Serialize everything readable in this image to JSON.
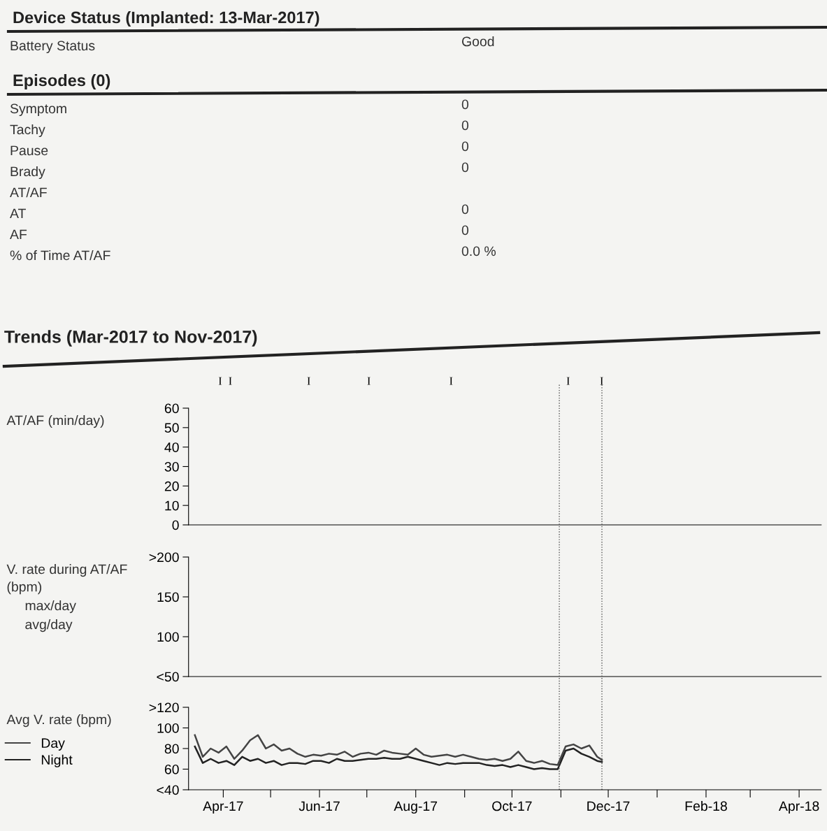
{
  "chart_data": [
    {
      "type": "other",
      "title": "Device Status (Implanted: 13-Mar-2017)",
      "categories": [
        "Battery Status"
      ],
      "value_labels": [
        "Good"
      ]
    },
    {
      "type": "other",
      "title": "Episodes (0)",
      "categories": [
        "Symptom",
        "Tachy",
        "Pause",
        "Brady",
        "AT/AF",
        "AT",
        "AF",
        "% of Time AT/AF"
      ],
      "value_labels": [
        "0",
        "0",
        "0",
        "0",
        null,
        "0",
        "0",
        "0.0 %"
      ]
    },
    {
      "type": "line",
      "title": "Trends (Mar-2017 to Nov-2017)",
      "ylabel": "AT/AF (min/day)",
      "xlim": [
        "2017-03-10",
        "2018-04-15"
      ],
      "ylim": [
        0,
        60
      ],
      "yticks": [
        0,
        10,
        20,
        30,
        40,
        50,
        60
      ],
      "tick_labels": "y",
      "annotations": [
        "I",
        "I",
        "I",
        "I",
        "I",
        "I",
        "I"
      ]
    },
    {
      "type": "line",
      "ylabel": "V. rate during AT/AF\n(bpm)",
      "xlim": [
        "2017-03-10",
        "2018-04-15"
      ],
      "ylim": [
        50,
        200
      ],
      "yticks": [
        {
          "value": 50,
          "label": "<50"
        },
        100,
        150,
        {
          "value": 200,
          "label": ">200"
        }
      ],
      "tick_labels": "y",
      "annotations": [
        "max/day",
        "avg/day"
      ]
    },
    {
      "type": "line",
      "ylabel": "Avg V. rate (bpm)",
      "legend": "left",
      "xlim": [
        "2017-03-10",
        "2018-04-15"
      ],
      "ylim": [
        40,
        120
      ],
      "yticks": [
        {
          "value": 40,
          "label": "<40"
        },
        60,
        80,
        100,
        {
          "value": 120,
          "label": ">120"
        }
      ],
      "xticks": [
        {
          "value": "2017-04-01",
          "label": "Apr-17"
        },
        {
          "value": "2017-05-01",
          "label": null
        },
        {
          "value": "2017-06-01",
          "label": "Jun-17"
        },
        {
          "value": "2017-07-01",
          "label": null
        },
        {
          "value": "2017-08-01",
          "label": "Aug-17"
        },
        {
          "value": "2017-09-01",
          "label": null
        },
        {
          "value": "2017-10-01",
          "label": "Oct-17"
        },
        {
          "value": "2017-11-01",
          "label": null
        },
        {
          "value": "2017-12-01",
          "label": "Dec-17"
        },
        {
          "value": "2018-01-01",
          "label": null
        },
        {
          "value": "2018-02-01",
          "label": "Feb-18"
        },
        {
          "value": "2018-03-01",
          "label": null
        },
        {
          "value": "2018-04-01",
          "label": "Apr-18"
        }
      ],
      "x": [
        "2017-03-14",
        "2017-03-19",
        "2017-03-24",
        "2017-03-29",
        "2017-04-03",
        "2017-04-08",
        "2017-04-13",
        "2017-04-18",
        "2017-04-23",
        "2017-04-28",
        "2017-05-03",
        "2017-05-08",
        "2017-05-13",
        "2017-05-18",
        "2017-05-23",
        "2017-05-28",
        "2017-06-02",
        "2017-06-07",
        "2017-06-12",
        "2017-06-17",
        "2017-06-22",
        "2017-06-27",
        "2017-07-02",
        "2017-07-07",
        "2017-07-12",
        "2017-07-17",
        "2017-07-22",
        "2017-07-27",
        "2017-08-01",
        "2017-08-06",
        "2017-08-11",
        "2017-08-16",
        "2017-08-21",
        "2017-08-26",
        "2017-08-31",
        "2017-09-05",
        "2017-09-10",
        "2017-09-15",
        "2017-09-20",
        "2017-09-25",
        "2017-09-30",
        "2017-10-05",
        "2017-10-10",
        "2017-10-15",
        "2017-10-20",
        "2017-10-25",
        "2017-10-30",
        "2017-11-04",
        "2017-11-09",
        "2017-11-14",
        "2017-11-19",
        "2017-11-24",
        "2017-11-27"
      ],
      "series": [
        {
          "name": "Day",
          "color": "#444444",
          "values": [
            93,
            72,
            80,
            76,
            82,
            70,
            78,
            88,
            93,
            80,
            84,
            78,
            80,
            75,
            72,
            74,
            73,
            75,
            74,
            77,
            72,
            75,
            76,
            74,
            78,
            76,
            75,
            74,
            80,
            74,
            72,
            73,
            74,
            72,
            74,
            72,
            70,
            69,
            70,
            68,
            70,
            77,
            68,
            66,
            68,
            65,
            64,
            82,
            84,
            80,
            83,
            72,
            69
          ]
        },
        {
          "name": "Night",
          "color": "#222222",
          "values": [
            82,
            66,
            70,
            66,
            68,
            64,
            72,
            68,
            70,
            66,
            68,
            64,
            66,
            66,
            65,
            68,
            68,
            66,
            70,
            68,
            68,
            69,
            70,
            70,
            71,
            70,
            70,
            72,
            70,
            68,
            66,
            64,
            66,
            65,
            66,
            66,
            66,
            64,
            63,
            64,
            62,
            64,
            62,
            60,
            61,
            60,
            60,
            78,
            80,
            75,
            72,
            68,
            67
          ]
        }
      ],
      "ref_lines": [
        {
          "axis": "x",
          "value": "2017-10-31",
          "color": "#555555",
          "line_style": "dotted"
        },
        {
          "axis": "x",
          "value": "2017-11-27",
          "color": "#555555",
          "line_style": "dotted"
        }
      ]
    }
  ]
}
